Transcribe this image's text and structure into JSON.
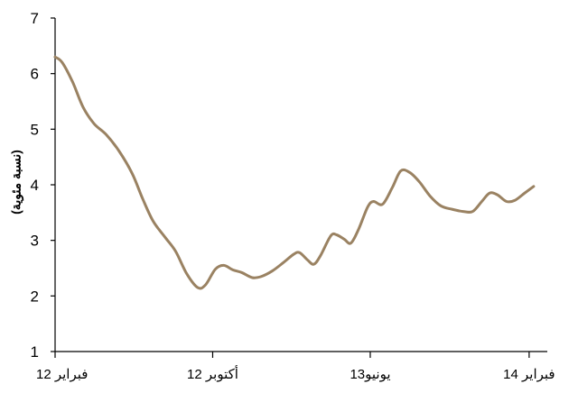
{
  "chart_data": {
    "type": "line",
    "title": "",
    "ylabel": "(نسبة مئوية)",
    "xlabel": "",
    "ylim": [
      1,
      7
    ],
    "yticks": [
      "1",
      "2",
      "3",
      "4",
      "5",
      "6",
      "7"
    ],
    "xlim": [
      "2012-02",
      "2014-03"
    ],
    "xticks": [
      {
        "date": "2012-02",
        "label": "فبراير 12"
      },
      {
        "date": "2012-10",
        "label": "أكتوبر 12"
      },
      {
        "date": "2013-06",
        "label": "يونيو13"
      },
      {
        "date": "2014-02",
        "label": "فبراير 14"
      }
    ],
    "grid": false,
    "line_color": "#9a8262",
    "series": [
      {
        "points": [
          [
            "2012-02-01",
            6.3
          ],
          [
            "2012-02-12",
            6.2
          ],
          [
            "2012-02-28",
            5.85
          ],
          [
            "2012-03-15",
            5.4
          ],
          [
            "2012-04-01",
            5.1
          ],
          [
            "2012-04-20",
            4.9
          ],
          [
            "2012-05-10",
            4.6
          ],
          [
            "2012-05-30",
            4.2
          ],
          [
            "2012-06-15",
            3.75
          ],
          [
            "2012-07-01",
            3.35
          ],
          [
            "2012-07-20",
            3.05
          ],
          [
            "2012-08-05",
            2.8
          ],
          [
            "2012-08-22",
            2.4
          ],
          [
            "2012-09-08",
            2.15
          ],
          [
            "2012-09-20",
            2.2
          ],
          [
            "2012-10-05",
            2.48
          ],
          [
            "2012-10-18",
            2.55
          ],
          [
            "2012-11-01",
            2.47
          ],
          [
            "2012-11-15",
            2.42
          ],
          [
            "2012-12-01",
            2.33
          ],
          [
            "2012-12-15",
            2.35
          ],
          [
            "2013-01-01",
            2.45
          ],
          [
            "2013-01-18",
            2.6
          ],
          [
            "2013-02-03",
            2.75
          ],
          [
            "2013-02-12",
            2.78
          ],
          [
            "2013-02-24",
            2.65
          ],
          [
            "2013-03-06",
            2.57
          ],
          [
            "2013-03-16",
            2.72
          ],
          [
            "2013-04-01",
            3.08
          ],
          [
            "2013-04-10",
            3.1
          ],
          [
            "2013-04-22",
            3.02
          ],
          [
            "2013-05-02",
            2.95
          ],
          [
            "2013-05-14",
            3.2
          ],
          [
            "2013-05-28",
            3.6
          ],
          [
            "2013-06-06",
            3.7
          ],
          [
            "2013-06-20",
            3.65
          ],
          [
            "2013-07-05",
            3.95
          ],
          [
            "2013-07-18",
            4.25
          ],
          [
            "2013-08-01",
            4.22
          ],
          [
            "2013-08-16",
            4.05
          ],
          [
            "2013-09-01",
            3.8
          ],
          [
            "2013-09-18",
            3.62
          ],
          [
            "2013-10-05",
            3.56
          ],
          [
            "2013-10-22",
            3.52
          ],
          [
            "2013-11-06",
            3.52
          ],
          [
            "2013-11-20",
            3.7
          ],
          [
            "2013-12-02",
            3.85
          ],
          [
            "2013-12-14",
            3.82
          ],
          [
            "2013-12-28",
            3.7
          ],
          [
            "2014-01-10",
            3.72
          ],
          [
            "2014-01-25",
            3.85
          ],
          [
            "2014-02-08",
            3.97
          ]
        ]
      }
    ]
  }
}
